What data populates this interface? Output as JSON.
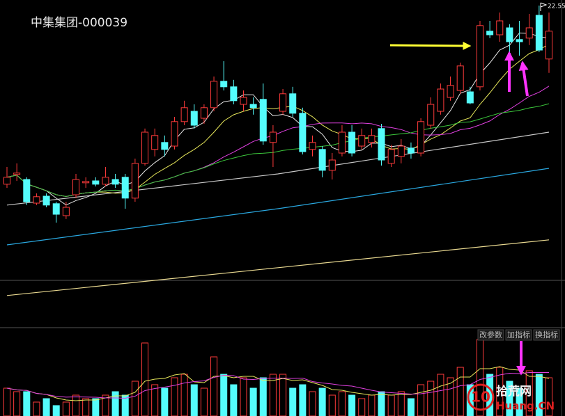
{
  "chart_data": {
    "type": "candlestick",
    "title": "中集集团-000039",
    "up_color": "#ff3b3b",
    "down_color": "#54fcfc",
    "ylim": [
      11.0,
      22.75
    ],
    "volume_ylim": [
      0,
      123
    ],
    "open": [
      16.13,
      16.48,
      16.3,
      15.45,
      15.7,
      15.43,
      15.0,
      15.75,
      16.18,
      16.25,
      16.13,
      16.3,
      16.38,
      15.63,
      16.88,
      17.38,
      17.63,
      17.5,
      18.38,
      18.75,
      18.5,
      18.88,
      19.83,
      19.63,
      19.0,
      19.0,
      19.18,
      17.63,
      18.75,
      19.38,
      18.68,
      17.38,
      17.38,
      16.63,
      17.25,
      18.0,
      17.5,
      17.63,
      18.13,
      16.88,
      17.13,
      17.43,
      17.25,
      18.25,
      18.75,
      19.25,
      19.5,
      19.45,
      19.63,
      21.63,
      21.5,
      21.75,
      21.33,
      21.38,
      22.2,
      20.63
    ],
    "high": [
      16.75,
      16.88,
      16.38,
      15.8,
      15.8,
      15.5,
      15.5,
      16.5,
      16.38,
      16.38,
      16.75,
      16.5,
      16.5,
      17.05,
      18.13,
      18.13,
      17.88,
      18.55,
      19.13,
      19.0,
      19.0,
      20.0,
      20.55,
      19.88,
      19.5,
      19.25,
      19.75,
      18.25,
      19.55,
      19.63,
      18.88,
      17.88,
      17.5,
      17.25,
      18.25,
      18.25,
      18.13,
      18.13,
      18.3,
      17.55,
      17.75,
      17.63,
      18.5,
      19.25,
      19.75,
      20.0,
      20.5,
      19.63,
      22.0,
      22.0,
      22.3,
      21.88,
      22.0,
      22.25,
      22.55,
      22.3
    ],
    "low": [
      16.0,
      16.25,
      15.38,
      15.38,
      15.3,
      14.75,
      14.88,
      15.63,
      16.0,
      16.05,
      16.05,
      16.0,
      15.25,
      15.5,
      16.8,
      17.13,
      17.13,
      17.38,
      18.25,
      18.13,
      18.3,
      18.75,
      19.5,
      19.0,
      18.75,
      18.63,
      17.55,
      16.75,
      18.63,
      18.55,
      17.2,
      17.13,
      16.38,
      16.3,
      17.13,
      17.13,
      17.38,
      17.45,
      16.8,
      16.75,
      16.88,
      17.05,
      17.13,
      18.13,
      18.63,
      19.13,
      19.38,
      19.0,
      19.5,
      21.38,
      21.25,
      19.5,
      20.75,
      21.13,
      20.88,
      20.13
    ],
    "close": [
      16.38,
      16.53,
      15.5,
      15.68,
      15.38,
      15.05,
      15.3,
      16.3,
      16.23,
      16.13,
      16.38,
      16.13,
      15.63,
      16.88,
      18.0,
      17.88,
      17.38,
      18.38,
      18.88,
      18.25,
      18.88,
      19.83,
      19.63,
      19.13,
      19.25,
      18.88,
      17.68,
      18.0,
      19.38,
      18.68,
      17.3,
      17.63,
      16.63,
      17.0,
      18.0,
      17.25,
      17.88,
      17.88,
      17.0,
      17.38,
      17.5,
      17.25,
      18.38,
      19.0,
      19.55,
      19.68,
      20.38,
      19.05,
      21.83,
      21.5,
      22.0,
      21.25,
      21.25,
      21.75,
      20.95,
      21.63
    ],
    "volume": [
      40,
      35,
      35,
      20,
      25,
      15,
      20,
      30,
      25,
      25,
      30,
      35,
      30,
      50,
      105,
      45,
      40,
      55,
      60,
      45,
      40,
      85,
      60,
      45,
      55,
      40,
      55,
      60,
      60,
      40,
      45,
      35,
      40,
      30,
      35,
      30,
      25,
      30,
      35,
      30,
      35,
      25,
      45,
      50,
      60,
      55,
      70,
      45,
      110,
      60,
      70,
      50,
      40,
      65,
      60,
      55
    ],
    "moving_averages": [
      {
        "period": 5,
        "color": "#e8e8e8"
      },
      {
        "period": 10,
        "color": "#e6e65a"
      },
      {
        "period": 20,
        "color": "#e040e0"
      },
      {
        "period": 30,
        "color": "#3cc83c"
      }
    ],
    "volume_averages": [
      {
        "period": 5,
        "color": "#e6e65a"
      },
      {
        "period": 10,
        "color": "#e040e0"
      }
    ],
    "trend_lines": [
      {
        "color": "#c8c8c8",
        "x": [
          0,
          27.5,
          55
        ],
        "values": [
          15.38,
          16.5,
          18.0
        ]
      },
      {
        "color": "#2aa8e0",
        "x": [
          0,
          27.5,
          55
        ],
        "values": [
          13.95,
          15.25,
          16.7
        ]
      },
      {
        "color": "#e8d890",
        "x": [
          0,
          27.5,
          55
        ],
        "values": [
          12.13,
          13.13,
          14.13
        ]
      }
    ],
    "buttons": [
      "改参数",
      "加指标",
      "换指标"
    ],
    "watermark": {
      "logo": "10",
      "name": "拾荒网",
      "site": "Huang.CN"
    }
  }
}
